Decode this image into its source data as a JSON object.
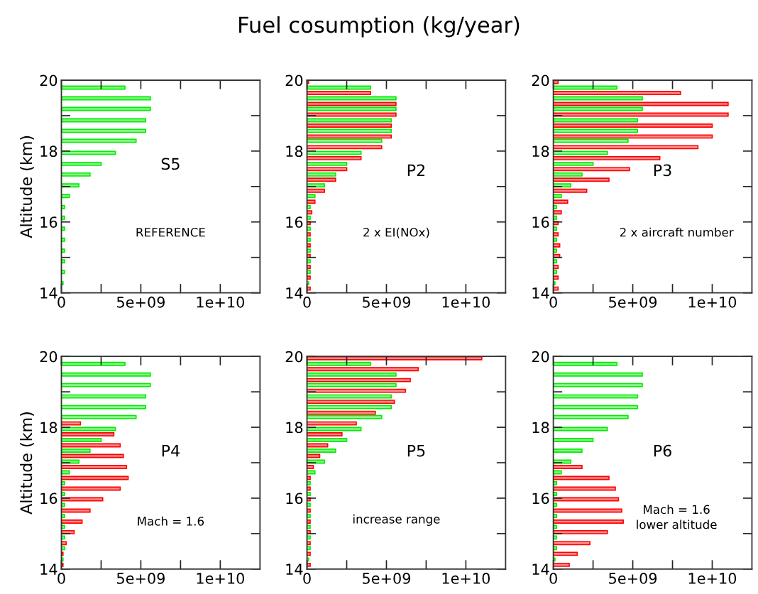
{
  "chart_data": [
    {
      "type": "bar",
      "orientation": "horizontal",
      "ylabel": "Altitude (km)",
      "annotations": [
        "S5",
        "REFERENCE"
      ],
      "xlim": [
        0,
        12500000000
      ],
      "xticks": [
        0,
        {
          "value": 2500000000,
          "label": null
        },
        {
          "value": 5000000000,
          "label": "5e+09"
        },
        {
          "value": 7500000000,
          "label": null
        },
        {
          "value": 10000000000,
          "label": "1e+10"
        }
      ],
      "ylim": [
        14,
        20
      ],
      "yticks": [
        14,
        {
          "value": 15,
          "label": null
        },
        16,
        {
          "value": 17,
          "label": null
        },
        18,
        {
          "value": 19,
          "label": null
        },
        20
      ],
      "series": [
        {
          "color": "#00ee00",
          "x": [
            19.79,
            19.49,
            19.19,
            18.87,
            18.57,
            18.29,
            17.95,
            17.64,
            17.34,
            17.03,
            16.73,
            16.42,
            16.12,
            15.81,
            15.5,
            15.19,
            14.89,
            14.59,
            14.27
          ],
          "values": [
            4000000000,
            5600000000,
            5600000000,
            5300000000,
            5300000000,
            4700000000,
            3400000000,
            2500000000,
            1800000000,
            1100000000,
            500000000,
            200000000,
            200000000,
            200000000,
            200000000,
            200000000,
            200000000,
            200000000,
            100000000
          ]
        }
      ]
    },
    {
      "type": "bar",
      "orientation": "horizontal",
      "title": "Fuel cosumption (kg/year)",
      "annotations": [
        "P2",
        "2 x EI(NOx)"
      ],
      "xlim": [
        0,
        12500000000
      ],
      "xticks": [
        0,
        {
          "value": 2500000000,
          "label": null
        },
        {
          "value": 5000000000,
          "label": "5e+09"
        },
        {
          "value": 7500000000,
          "label": null
        },
        {
          "value": 10000000000,
          "label": "1e+10"
        }
      ],
      "ylim": [
        14,
        20
      ],
      "yticks": [
        14,
        {
          "value": 15,
          "label": null
        },
        16,
        {
          "value": 17,
          "label": null
        },
        18,
        {
          "value": 19,
          "label": null
        },
        20
      ],
      "series": [
        {
          "color": "#00ee00",
          "x": [
            19.79,
            19.49,
            19.19,
            18.87,
            18.57,
            18.29,
            17.95,
            17.64,
            17.34,
            17.03,
            16.73,
            16.42,
            16.12,
            15.81,
            15.5,
            15.19,
            14.89,
            14.59,
            14.27
          ],
          "values": [
            4000000000,
            5600000000,
            5600000000,
            5300000000,
            5300000000,
            4700000000,
            3400000000,
            2500000000,
            1800000000,
            1100000000,
            500000000,
            200000000,
            200000000,
            200000000,
            200000000,
            200000000,
            200000000,
            200000000,
            100000000
          ]
        },
        {
          "color": "#ff0000",
          "x": [
            19.95,
            19.64,
            19.33,
            19.03,
            18.72,
            18.41,
            18.11,
            17.8,
            17.49,
            17.19,
            16.88,
            16.57,
            16.27,
            15.97,
            15.65,
            15.34,
            15.04,
            14.73,
            14.43,
            14.12
          ],
          "values": [
            100000000,
            4000000000,
            5600000000,
            5600000000,
            5300000000,
            5300000000,
            4700000000,
            3400000000,
            2500000000,
            1800000000,
            1100000000,
            500000000,
            300000000,
            200000000,
            200000000,
            200000000,
            200000000,
            200000000,
            200000000,
            200000000
          ]
        }
      ]
    },
    {
      "type": "bar",
      "orientation": "horizontal",
      "annotations": [
        "P3",
        "2 x aircraft number"
      ],
      "xlim": [
        0,
        12500000000
      ],
      "xticks": [
        0,
        {
          "value": 2500000000,
          "label": null
        },
        {
          "value": 5000000000,
          "label": "5e+09"
        },
        {
          "value": 7500000000,
          "label": null
        },
        {
          "value": 10000000000,
          "label": "1e+10"
        }
      ],
      "ylim": [
        14,
        20
      ],
      "yticks": [
        14,
        {
          "value": 15,
          "label": null
        },
        16,
        {
          "value": 17,
          "label": null
        },
        18,
        {
          "value": 19,
          "label": null
        },
        20
      ],
      "series": [
        {
          "color": "#00ee00",
          "x": [
            19.79,
            19.49,
            19.19,
            18.87,
            18.57,
            18.29,
            17.95,
            17.64,
            17.34,
            17.03,
            16.73,
            16.42,
            16.12,
            15.81,
            15.5,
            15.19,
            14.89,
            14.59,
            14.27
          ],
          "values": [
            4000000000,
            5600000000,
            5600000000,
            5300000000,
            5300000000,
            4700000000,
            3400000000,
            2500000000,
            1800000000,
            1100000000,
            500000000,
            200000000,
            200000000,
            200000000,
            200000000,
            200000000,
            200000000,
            200000000,
            100000000
          ]
        },
        {
          "color": "#ff0000",
          "x": [
            19.95,
            19.64,
            19.33,
            19.03,
            18.72,
            18.41,
            18.11,
            17.8,
            17.49,
            17.19,
            16.88,
            16.57,
            16.27,
            15.97,
            15.65,
            15.34,
            15.04,
            14.73,
            14.43,
            14.12
          ],
          "values": [
            300000000,
            8000000000,
            11000000000,
            11000000000,
            10000000000,
            10000000000,
            9100000000,
            6700000000,
            4800000000,
            3500000000,
            2100000000,
            900000000,
            500000000,
            300000000,
            300000000,
            400000000,
            400000000,
            300000000,
            300000000,
            300000000
          ]
        }
      ]
    },
    {
      "type": "bar",
      "orientation": "horizontal",
      "ylabel": "Altitude (km)",
      "annotations": [
        "P4",
        "Mach = 1.6"
      ],
      "xlim": [
        0,
        12500000000
      ],
      "xticks": [
        0,
        {
          "value": 2500000000,
          "label": null
        },
        {
          "value": 5000000000,
          "label": "5e+09"
        },
        {
          "value": 7500000000,
          "label": null
        },
        {
          "value": 10000000000,
          "label": "1e+10"
        }
      ],
      "ylim": [
        14,
        20
      ],
      "yticks": [
        14,
        {
          "value": 15,
          "label": null
        },
        16,
        {
          "value": 17,
          "label": null
        },
        18,
        {
          "value": 19,
          "label": null
        },
        20
      ],
      "series": [
        {
          "color": "#00ee00",
          "x": [
            19.79,
            19.49,
            19.19,
            18.87,
            18.57,
            18.29,
            17.95,
            17.64,
            17.34,
            17.03,
            16.73,
            16.42,
            16.12,
            15.81,
            15.5,
            15.19,
            14.89,
            14.59,
            14.27
          ],
          "values": [
            4000000000,
            5600000000,
            5600000000,
            5300000000,
            5300000000,
            4700000000,
            3400000000,
            2500000000,
            1800000000,
            1100000000,
            500000000,
            200000000,
            200000000,
            200000000,
            200000000,
            200000000,
            200000000,
            200000000,
            100000000
          ]
        },
        {
          "color": "#ff0000",
          "x": [
            18.11,
            17.8,
            17.49,
            17.19,
            16.88,
            16.57,
            16.27,
            15.97,
            15.65,
            15.34,
            15.04,
            14.73,
            14.43,
            14.12
          ],
          "values": [
            1200000000,
            3300000000,
            3700000000,
            3900000000,
            4100000000,
            4200000000,
            3700000000,
            2600000000,
            1800000000,
            1300000000,
            800000000,
            300000000,
            100000000,
            100000000
          ]
        }
      ]
    },
    {
      "type": "bar",
      "orientation": "horizontal",
      "annotations": [
        "P5",
        "increase range"
      ],
      "xlim": [
        0,
        12500000000
      ],
      "xticks": [
        0,
        {
          "value": 2500000000,
          "label": null
        },
        {
          "value": 5000000000,
          "label": "5e+09"
        },
        {
          "value": 7500000000,
          "label": null
        },
        {
          "value": 10000000000,
          "label": "1e+10"
        }
      ],
      "ylim": [
        14,
        20
      ],
      "yticks": [
        14,
        {
          "value": 15,
          "label": null
        },
        16,
        {
          "value": 17,
          "label": null
        },
        18,
        {
          "value": 19,
          "label": null
        },
        20
      ],
      "series": [
        {
          "color": "#00ee00",
          "x": [
            19.79,
            19.49,
            19.19,
            18.87,
            18.57,
            18.29,
            17.95,
            17.64,
            17.34,
            17.03,
            16.73,
            16.42,
            16.12,
            15.81,
            15.5,
            15.19,
            14.89,
            14.59,
            14.27
          ],
          "values": [
            4000000000,
            5600000000,
            5600000000,
            5300000000,
            5300000000,
            4700000000,
            3400000000,
            2500000000,
            1800000000,
            1100000000,
            500000000,
            200000000,
            200000000,
            200000000,
            200000000,
            200000000,
            200000000,
            200000000,
            100000000
          ]
        },
        {
          "color": "#ff0000",
          "x": [
            19.95,
            19.64,
            19.33,
            19.03,
            18.72,
            18.41,
            18.11,
            17.8,
            17.49,
            17.19,
            16.88,
            16.57,
            16.27,
            15.97,
            15.65,
            15.34,
            15.04,
            14.73,
            14.43,
            14.12
          ],
          "values": [
            11000000000,
            7000000000,
            6500000000,
            6200000000,
            5500000000,
            4300000000,
            3100000000,
            2200000000,
            1300000000,
            800000000,
            400000000,
            200000000,
            200000000,
            200000000,
            200000000,
            200000000,
            200000000,
            200000000,
            200000000,
            200000000
          ]
        }
      ]
    },
    {
      "type": "bar",
      "orientation": "horizontal",
      "annotations": [
        "P6",
        "Mach = 1.6\nlower altitude"
      ],
      "xlim": [
        0,
        12500000000
      ],
      "xticks": [
        0,
        {
          "value": 2500000000,
          "label": null
        },
        {
          "value": 5000000000,
          "label": "5e+09"
        },
        {
          "value": 7500000000,
          "label": null
        },
        {
          "value": 10000000000,
          "label": "1e+10"
        }
      ],
      "ylim": [
        14,
        20
      ],
      "yticks": [
        14,
        {
          "value": 15,
          "label": null
        },
        16,
        {
          "value": 17,
          "label": null
        },
        18,
        {
          "value": 19,
          "label": null
        },
        20
      ],
      "series": [
        {
          "color": "#00ee00",
          "x": [
            19.79,
            19.49,
            19.19,
            18.87,
            18.57,
            18.29,
            17.95,
            17.64,
            17.34,
            17.03,
            16.73,
            16.42,
            16.12,
            15.81,
            15.5,
            15.19,
            14.89,
            14.59,
            14.27
          ],
          "values": [
            4000000000,
            5600000000,
            5600000000,
            5300000000,
            5300000000,
            4700000000,
            3400000000,
            2500000000,
            1800000000,
            1100000000,
            500000000,
            200000000,
            200000000,
            200000000,
            200000000,
            200000000,
            200000000,
            200000000,
            100000000
          ]
        },
        {
          "color": "#ff0000",
          "x": [
            16.88,
            16.57,
            16.27,
            15.97,
            15.65,
            15.34,
            15.04,
            14.73,
            14.43,
            14.12
          ],
          "values": [
            1800000000,
            3500000000,
            3900000000,
            4100000000,
            4300000000,
            4400000000,
            3400000000,
            2300000000,
            1500000000,
            1000000000
          ]
        }
      ]
    }
  ]
}
